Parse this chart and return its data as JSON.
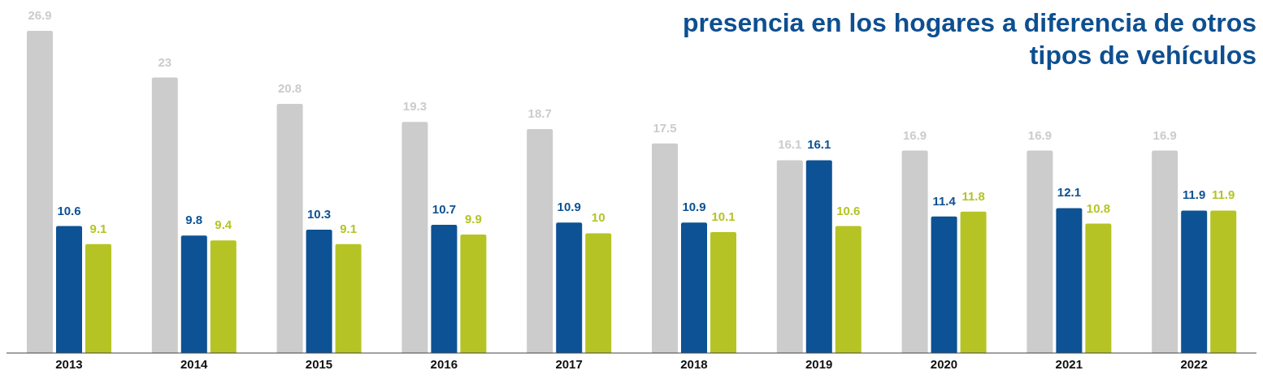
{
  "chart_data": {
    "type": "bar",
    "title": "presencia en los hogares a diferencia de otros tipos de vehículos",
    "categories": [
      "2013",
      "2014",
      "2015",
      "2016",
      "2017",
      "2018",
      "2019",
      "2020",
      "2021",
      "2022"
    ],
    "series": [
      {
        "color": "#cccccc",
        "values": [
          26.9,
          23,
          20.8,
          19.3,
          18.7,
          17.5,
          16.1,
          16.9,
          16.9,
          16.9
        ]
      },
      {
        "color": "#0d5294",
        "values": [
          10.6,
          9.8,
          10.3,
          10.7,
          10.9,
          10.9,
          16.1,
          11.4,
          12.1,
          11.9
        ]
      },
      {
        "color": "#b5c424",
        "values": [
          9.1,
          9.4,
          9.1,
          9.9,
          10,
          10.1,
          10.6,
          11.8,
          10.8,
          11.9
        ]
      }
    ],
    "data_labels": true,
    "grid": false,
    "legend": false
  }
}
